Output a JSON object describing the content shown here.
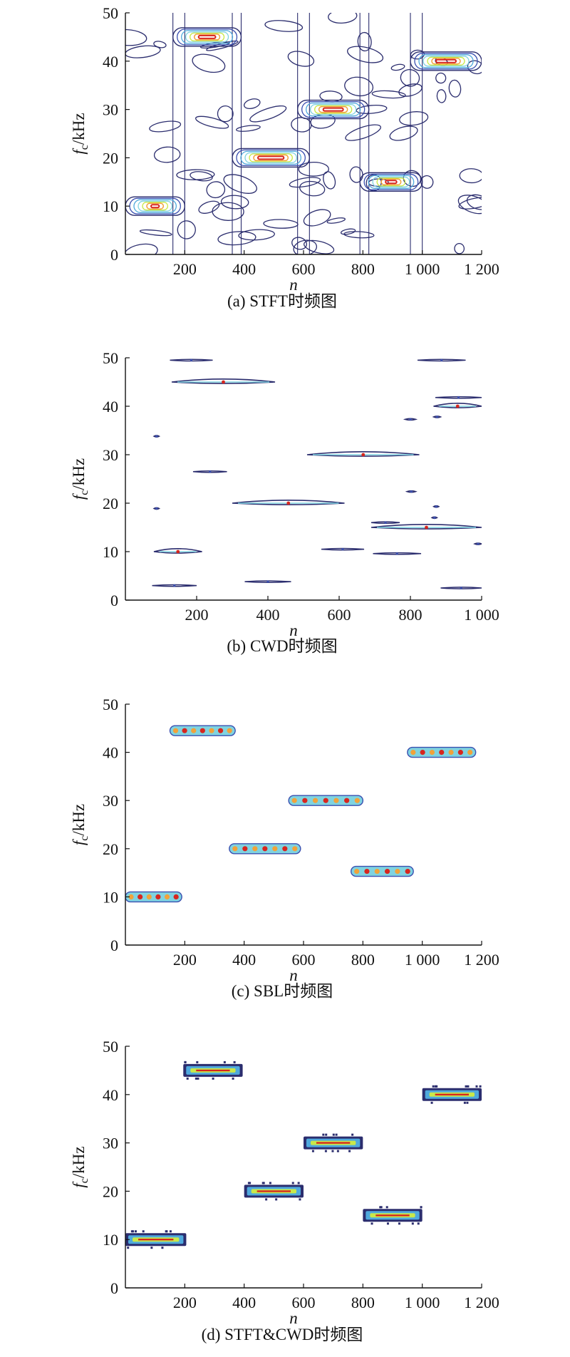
{
  "colors": {
    "outline": "#2b2d6e",
    "c1": "#3a4fb0",
    "c2": "#4fa9dd",
    "c3": "#7fd3e0",
    "c4": "#c9e84a",
    "c5": "#f1a23a",
    "c6": "#d7261e",
    "axis": "#111111"
  },
  "chart_data": [
    {
      "type": "heatmap",
      "caption": "(a) STFT时频图",
      "xlabel": "n",
      "ylabel_main": "f",
      "ylabel_sub": "c",
      "ylabel_unit": "/kHz",
      "xlim": [
        0,
        1200
      ],
      "ylim": [
        0,
        50
      ],
      "xticks": [
        200,
        400,
        600,
        800,
        1000,
        1200
      ],
      "xtick_labels": [
        "200",
        "400",
        "600",
        "800",
        "1 000",
        "1 200"
      ],
      "yticks": [
        0,
        10,
        20,
        30,
        40,
        50
      ],
      "ytick_labels": [
        "0",
        "10",
        "20",
        "30",
        "40",
        "50"
      ],
      "style": "stft",
      "components": [
        {
          "n_start": 0,
          "n_end": 200,
          "f_khz": 10
        },
        {
          "n_start": 160,
          "n_end": 390,
          "f_khz": 45
        },
        {
          "n_start": 360,
          "n_end": 620,
          "f_khz": 20
        },
        {
          "n_start": 580,
          "n_end": 820,
          "f_khz": 30
        },
        {
          "n_start": 790,
          "n_end": 1000,
          "f_khz": 15
        },
        {
          "n_start": 960,
          "n_end": 1200,
          "f_khz": 40
        }
      ]
    },
    {
      "type": "heatmap",
      "caption": "(b) CWD时频图",
      "xlabel": "n",
      "ylabel_main": "f",
      "ylabel_sub": "c",
      "ylabel_unit": "/kHz",
      "xlim": [
        0,
        1000
      ],
      "ylim": [
        0,
        50
      ],
      "xticks": [
        200,
        400,
        600,
        800,
        1000
      ],
      "xtick_labels": [
        "200",
        "400",
        "600",
        "800",
        "1 000"
      ],
      "yticks": [
        0,
        10,
        20,
        30,
        40,
        50
      ],
      "ytick_labels": [
        "0",
        "10",
        "20",
        "30",
        "40",
        "50"
      ],
      "style": "cwd",
      "components": [
        {
          "n_start": 80,
          "n_end": 215,
          "f_khz": 10
        },
        {
          "n_start": 130,
          "n_end": 420,
          "f_khz": 45
        },
        {
          "n_start": 300,
          "n_end": 615,
          "f_khz": 20
        },
        {
          "n_start": 510,
          "n_end": 825,
          "f_khz": 30
        },
        {
          "n_start": 690,
          "n_end": 1000,
          "f_khz": 15
        },
        {
          "n_start": 865,
          "n_end": 1000,
          "f_khz": 40
        }
      ],
      "cross_terms": [
        {
          "n_start": 125,
          "n_end": 245,
          "f_khz": 49.5
        },
        {
          "n_start": 820,
          "n_end": 955,
          "f_khz": 49.5
        },
        {
          "n_start": 870,
          "n_end": 1000,
          "f_khz": 41.8
        },
        {
          "n_start": 190,
          "n_end": 285,
          "f_khz": 26.5
        },
        {
          "n_start": 550,
          "n_end": 670,
          "f_khz": 10.5
        },
        {
          "n_start": 695,
          "n_end": 830,
          "f_khz": 9.6
        },
        {
          "n_start": 75,
          "n_end": 200,
          "f_khz": 3.0
        },
        {
          "n_start": 335,
          "n_end": 465,
          "f_khz": 3.8
        },
        {
          "n_start": 885,
          "n_end": 1000,
          "f_khz": 2.5
        },
        {
          "n_start": 690,
          "n_end": 770,
          "f_khz": 16.0
        },
        {
          "n_start": 80,
          "n_end": 95,
          "f_khz": 33.8
        },
        {
          "n_start": 80,
          "n_end": 95,
          "f_khz": 18.9
        },
        {
          "n_start": 785,
          "n_end": 815,
          "f_khz": 37.3
        },
        {
          "n_start": 790,
          "n_end": 815,
          "f_khz": 22.4
        },
        {
          "n_start": 865,
          "n_end": 885,
          "f_khz": 37.8
        },
        {
          "n_start": 865,
          "n_end": 880,
          "f_khz": 19.3
        },
        {
          "n_start": 860,
          "n_end": 875,
          "f_khz": 17.0
        },
        {
          "n_start": 980,
          "n_end": 1000,
          "f_khz": 11.6
        }
      ]
    },
    {
      "type": "heatmap",
      "caption": "(c) SBL时频图",
      "xlabel": "n",
      "ylabel_main": "f",
      "ylabel_sub": "c",
      "ylabel_unit": "/kHz",
      "xlim": [
        0,
        1200
      ],
      "ylim": [
        0,
        50
      ],
      "xticks": [
        200,
        400,
        600,
        800,
        1000,
        1200
      ],
      "xtick_labels": [
        "200",
        "400",
        "600",
        "800",
        "1 000",
        "1 200"
      ],
      "yticks": [
        0,
        10,
        20,
        30,
        40,
        50
      ],
      "ytick_labels": [
        "0",
        "10",
        "20",
        "30",
        "40",
        "50"
      ],
      "style": "sbl",
      "components": [
        {
          "n_start": 0,
          "n_end": 190,
          "f_khz": 10
        },
        {
          "n_start": 150,
          "n_end": 370,
          "f_khz": 44.5
        },
        {
          "n_start": 350,
          "n_end": 590,
          "f_khz": 20
        },
        {
          "n_start": 550,
          "n_end": 800,
          "f_khz": 30
        },
        {
          "n_start": 760,
          "n_end": 970,
          "f_khz": 15.3
        },
        {
          "n_start": 950,
          "n_end": 1180,
          "f_khz": 40
        }
      ]
    },
    {
      "type": "heatmap",
      "caption": "(d) STFT&CWD时频图",
      "xlabel": "n",
      "ylabel_main": "f",
      "ylabel_sub": "c",
      "ylabel_unit": "/kHz",
      "xlim": [
        0,
        1200
      ],
      "ylim": [
        0,
        50
      ],
      "xticks": [
        200,
        400,
        600,
        800,
        1000,
        1200
      ],
      "xtick_labels": [
        "200",
        "400",
        "600",
        "800",
        "1 000",
        "1 200"
      ],
      "yticks": [
        0,
        10,
        20,
        30,
        40,
        50
      ],
      "ytick_labels": [
        "0",
        "10",
        "20",
        "30",
        "40",
        "50"
      ],
      "style": "combo",
      "components": [
        {
          "n_start": 0,
          "n_end": 205,
          "f_khz": 10
        },
        {
          "n_start": 195,
          "n_end": 395,
          "f_khz": 45
        },
        {
          "n_start": 400,
          "n_end": 600,
          "f_khz": 20
        },
        {
          "n_start": 600,
          "n_end": 800,
          "f_khz": 30
        },
        {
          "n_start": 800,
          "n_end": 1000,
          "f_khz": 15
        },
        {
          "n_start": 1000,
          "n_end": 1200,
          "f_khz": 40
        }
      ]
    }
  ]
}
